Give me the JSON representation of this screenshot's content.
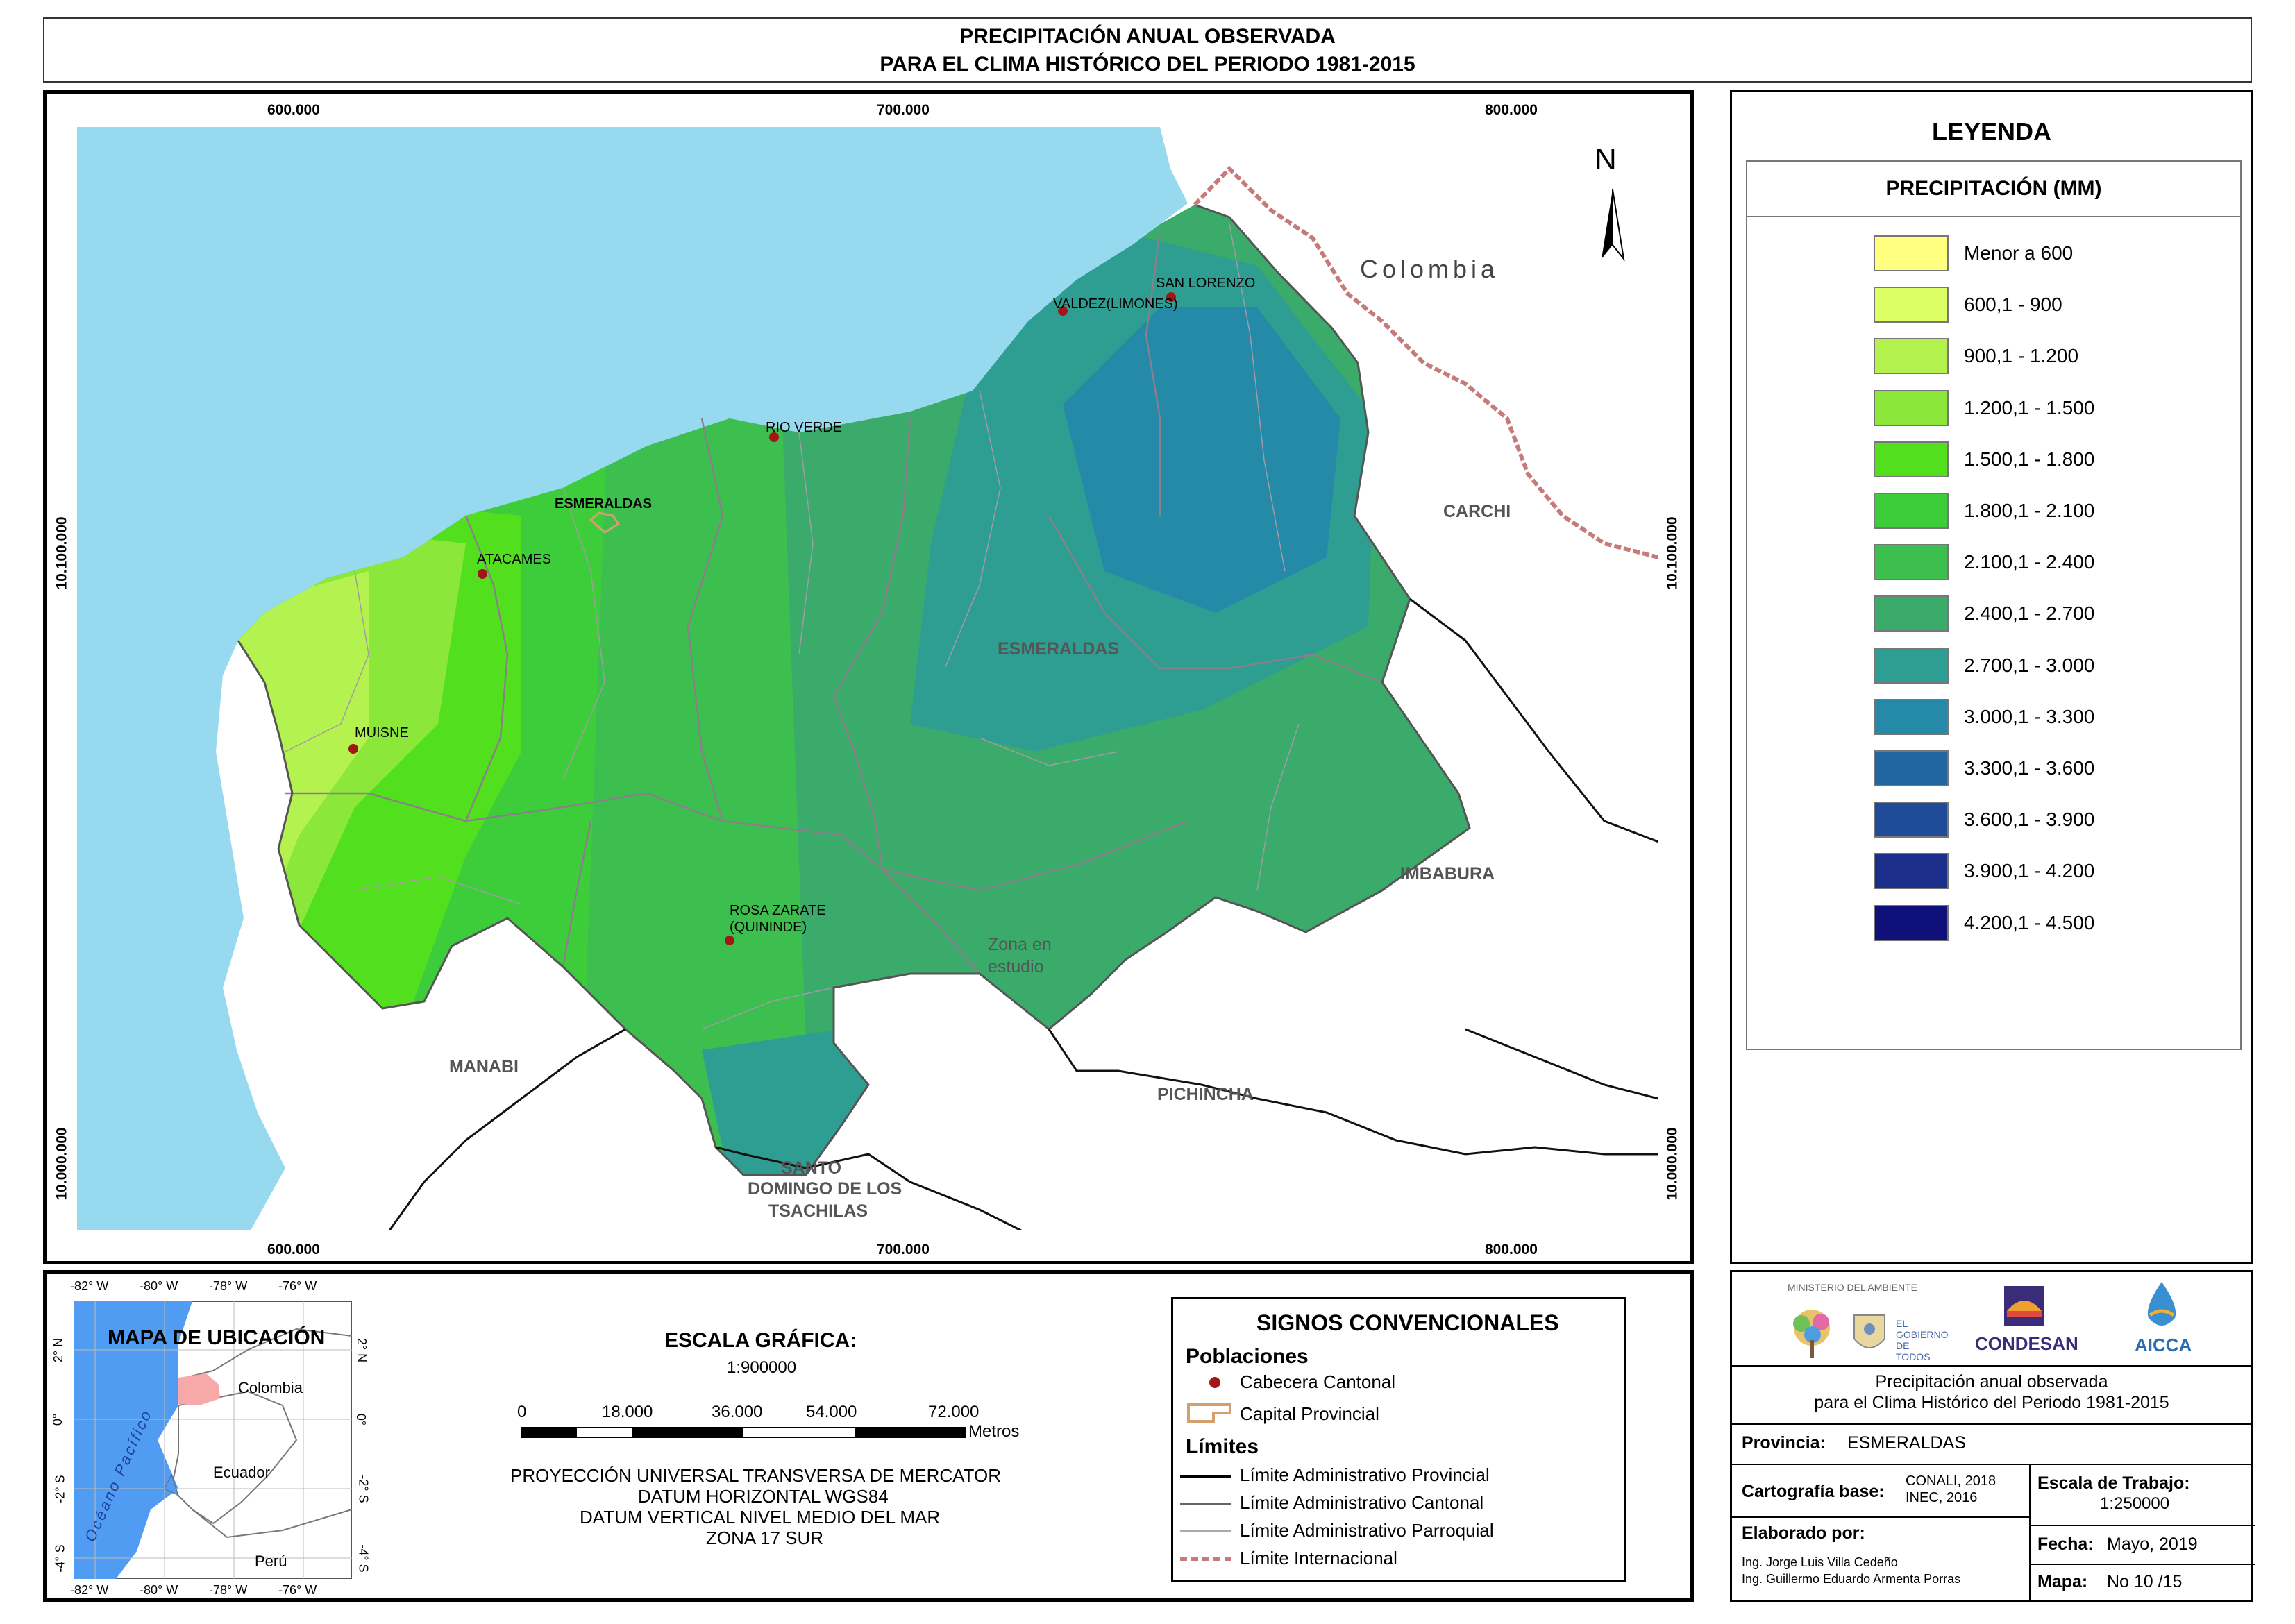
{
  "title": {
    "line1": "PRECIPITACIÓN ANUAL OBSERVADA",
    "line2": "PARA EL CLIMA HISTÓRICO DEL PERIODO 1981-2015"
  },
  "map": {
    "x_ticks": [
      "600.000",
      "700.000",
      "800.000"
    ],
    "y_ticks": [
      "10.100.000",
      "10.000.000"
    ],
    "north": "N",
    "country": "Colombia",
    "regions": {
      "carchi": "CARCHI",
      "esmeraldas": "ESMERALDAS",
      "imbabura": "IMBABURA",
      "manabi": "MANABI",
      "pichincha": "PICHINCHA",
      "santo_domingo_1": "SANTO",
      "santo_domingo_2": "DOMINGO DE LOS",
      "santo_domingo_3": "TSACHILAS",
      "zona_1": "Zona en",
      "zona_2": "estudio"
    },
    "cities": {
      "san_lorenzo": "SAN LORENZO",
      "valdez": "VALDEZ(LIMONES)",
      "rio_verde": "RIO VERDE",
      "esmeraldas": "ESMERALDAS",
      "atacames": "ATACAMES",
      "muisne": "MUISNE",
      "rosa_zarate_1": "ROSA ZARATE",
      "rosa_zarate_2": "(QUININDE)"
    }
  },
  "legend": {
    "title": "LEYENDA",
    "header": "PRECIPITACIÓN (MM)",
    "classes": [
      {
        "label": "Menor a 600",
        "color": "#FFFF80"
      },
      {
        "label": "600,1 - 900",
        "color": "#DDFF66"
      },
      {
        "label": "900,1 - 1.200",
        "color": "#B4F250"
      },
      {
        "label": "1.200,1 - 1.500",
        "color": "#8BE83A"
      },
      {
        "label": "1.500,1 - 1.800",
        "color": "#52E01E"
      },
      {
        "label": "1.800,1 - 2.100",
        "color": "#3ECD3A"
      },
      {
        "label": "2.100,1 - 2.400",
        "color": "#3DBF50"
      },
      {
        "label": "2.400,1 - 2.700",
        "color": "#3AAB6A"
      },
      {
        "label": "2.700,1 - 3.000",
        "color": "#2E9E92"
      },
      {
        "label": "3.000,1 - 3.300",
        "color": "#2589A8"
      },
      {
        "label": "3.300,1 - 3.600",
        "color": "#2166A0"
      },
      {
        "label": "3.600,1 - 3.900",
        "color": "#1E4C98"
      },
      {
        "label": "3.900,1 - 4.200",
        "color": "#1A2E8A"
      },
      {
        "label": "4.200,1 - 4.500",
        "color": "#10107A"
      }
    ]
  },
  "location_map": {
    "title": "MAPA DE UBICACIÓN",
    "x_ticks": [
      "-82° W",
      "-80° W",
      "-78° W",
      "-76° W"
    ],
    "y_ticks": [
      "2° N",
      "0°",
      "-2° S",
      "-4° S"
    ],
    "ocean": "Océano Pacífico",
    "colombia": "Colombia",
    "ecuador": "Ecuador",
    "peru": "Perú"
  },
  "scale": {
    "title": "ESCALA GRÁFICA:",
    "ratio": "1:900000",
    "ticks": [
      "0",
      "18.000",
      "36.000",
      "54.000",
      "72.000"
    ],
    "unit": "Metros",
    "proj1": "PROYECCIÓN UNIVERSAL TRANSVERSA DE MERCATOR",
    "proj2": "DATUM HORIZONTAL WGS84",
    "proj3": "DATUM VERTICAL NIVEL MEDIO DEL MAR",
    "proj4": "ZONA 17 SUR"
  },
  "signs": {
    "title": "SIGNOS CONVENCIONALES",
    "poblaciones": "Poblaciones",
    "cabecera": "Cabecera Cantonal",
    "capital": "Capital Provincial",
    "limites": "Límites",
    "provincial": "Límite Administrativo Provincial",
    "cantonal": "Límite Administrativo Cantonal",
    "parroquial": "Límite Administrativo Parroquial",
    "internacional": "Límite Internacional"
  },
  "info": {
    "ministerio": "MINISTERIO DEL AMBIENTE",
    "gobierno": "EL GOBIERNO DE TODOS",
    "condesan": "CONDESAN",
    "aicca": "AICCA",
    "desc1": "Precipitación anual observada",
    "desc2": "para el Clima Histórico del Periodo 1981-2015",
    "provincia_label": "Provincia:",
    "provincia_value": "ESMERALDAS",
    "cartografia_label": "Cartografía base:",
    "cartografia_1": "CONALI, 2018",
    "cartografia_2": "INEC, 2016",
    "escala_label": "Escala de Trabajo:",
    "escala_value": "1:250000",
    "elaborado_label": "Elaborado por:",
    "autor1": "Ing. Jorge Luis Villa Cedeño",
    "autor2": "Ing. Guillermo Eduardo Armenta Porras",
    "fecha_label": "Fecha:",
    "fecha_value": "Mayo, 2019",
    "mapa_label": "Mapa:",
    "mapa_value": "No 10 /15"
  }
}
